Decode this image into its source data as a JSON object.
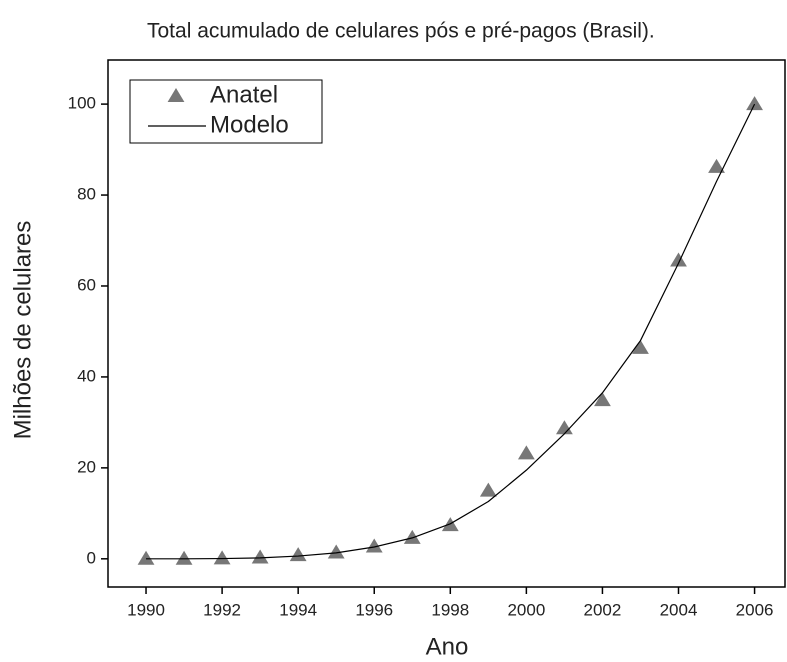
{
  "chart_data": {
    "type": "line",
    "title": "Total acumulado de celulares pós e pré-pagos (Brasil).",
    "x_label": "Ano",
    "y_label": "Milhões de celulares",
    "x": [
      1990,
      1991,
      1992,
      1993,
      1994,
      1995,
      1996,
      1997,
      1998,
      1999,
      2000,
      2001,
      2002,
      2003,
      2004,
      2005,
      2006
    ],
    "series": [
      {
        "name": "Anatel",
        "type": "scatter",
        "color": "#777777",
        "values": [
          0.0,
          0.0,
          0.1,
          0.3,
          0.8,
          1.4,
          2.7,
          4.6,
          7.4,
          15.0,
          23.2,
          28.7,
          34.9,
          46.4,
          65.6,
          86.2,
          100.0
        ]
      },
      {
        "name": "Modelo",
        "type": "line",
        "color": "#000000",
        "values": [
          0.0,
          0.0,
          0.05,
          0.2,
          0.6,
          1.3,
          2.6,
          4.6,
          7.7,
          12.6,
          19.5,
          27.5,
          36.5,
          48.0,
          65.0,
          83.0,
          100.0
        ]
      }
    ],
    "xlim": [
      1989,
      2006.8
    ],
    "ylim": [
      -6.2,
      109.7
    ],
    "xticks": [
      1990,
      1992,
      1994,
      1996,
      1998,
      2000,
      2002,
      2004,
      2006
    ],
    "yticks": [
      0,
      20,
      40,
      60,
      80,
      100
    ],
    "grid": false,
    "legend": "upper left"
  }
}
